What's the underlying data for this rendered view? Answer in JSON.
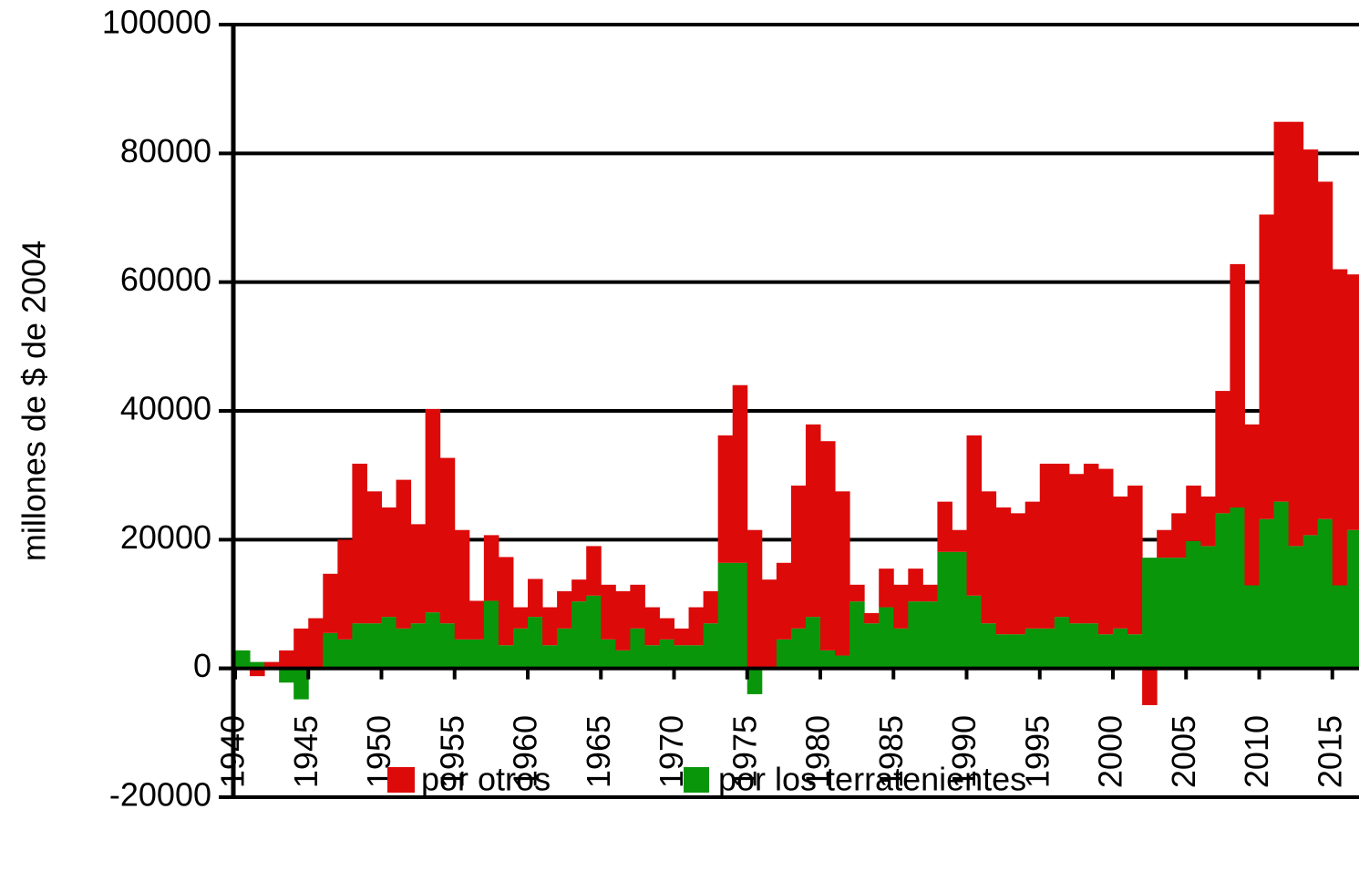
{
  "chart_data": {
    "type": "stacked_bar",
    "y_label": "millones de $ de 2004",
    "x": [
      1940,
      1941,
      1942,
      1943,
      1944,
      1945,
      1946,
      1947,
      1948,
      1949,
      1950,
      1951,
      1952,
      1953,
      1954,
      1955,
      1956,
      1957,
      1958,
      1959,
      1960,
      1961,
      1962,
      1963,
      1964,
      1965,
      1966,
      1967,
      1968,
      1969,
      1970,
      1971,
      1972,
      1973,
      1974,
      1975,
      1976,
      1977,
      1978,
      1979,
      1980,
      1981,
      1982,
      1983,
      1984,
      1985,
      1986,
      1987,
      1988,
      1989,
      1990,
      1991,
      1992,
      1993,
      1994,
      1995,
      1996,
      1997,
      1998,
      1999,
      2000,
      2001,
      2002,
      2003,
      2004,
      2005,
      2006,
      2007,
      2008,
      2009,
      2010,
      2011,
      2012,
      2013,
      2014,
      2015,
      2016
    ],
    "series": [
      {
        "name": "por otros",
        "color": "#dd0a0a",
        "values": [
          0,
          -1200,
          1000,
          2800,
          6200,
          7800,
          9200,
          15500,
          24800,
          20500,
          17000,
          23100,
          15400,
          31600,
          25700,
          17000,
          6000,
          10200,
          13700,
          3300,
          5900,
          5900,
          5800,
          3400,
          7700,
          8500,
          9200,
          6800,
          5900,
          3300,
          2600,
          5900,
          5000,
          19800,
          27600,
          21500,
          13800,
          11900,
          22200,
          29900,
          32500,
          25500,
          2600,
          1600,
          6000,
          6800,
          5100,
          2600,
          7800,
          3400,
          24900,
          20500,
          19700,
          18800,
          19700,
          25600,
          23800,
          23200,
          24800,
          25700,
          20500,
          23100,
          -5700,
          4300,
          6900,
          8600,
          7700,
          19000,
          37800,
          25000,
          47300,
          59000,
          65900,
          59900,
          52400,
          49100,
          39700
        ]
      },
      {
        "name": "por los terratenientes",
        "color": "#0a960a",
        "values": [
          2800,
          1000,
          0,
          -2200,
          -4800,
          0,
          5500,
          4500,
          7000,
          7000,
          8000,
          6200,
          7000,
          8700,
          7000,
          4500,
          4500,
          10500,
          3600,
          6200,
          8000,
          3600,
          6200,
          10400,
          11300,
          4500,
          2800,
          6200,
          3600,
          4500,
          3600,
          3600,
          7000,
          16400,
          16400,
          -4000,
          0,
          4500,
          6200,
          8000,
          2800,
          2000,
          10400,
          7000,
          9500,
          6200,
          10400,
          10400,
          18100,
          18100,
          11300,
          7000,
          5300,
          5300,
          6200,
          6200,
          8000,
          7000,
          7000,
          5300,
          6200,
          5300,
          17200,
          17200,
          17200,
          19800,
          19000,
          24100,
          25000,
          12900,
          23200,
          25900,
          19000,
          20700,
          23200,
          12900,
          21500
        ]
      }
    ],
    "xlim": [
      1940,
      2017
    ],
    "xticks": [
      1940,
      1945,
      1950,
      1955,
      1960,
      1965,
      1970,
      1975,
      1980,
      1985,
      1990,
      1995,
      2000,
      2005,
      2010,
      2015
    ],
    "ylim": [
      -20000,
      100000
    ],
    "yticks": [
      -20000,
      0,
      20000,
      40000,
      60000,
      80000,
      100000
    ],
    "grid": true
  }
}
